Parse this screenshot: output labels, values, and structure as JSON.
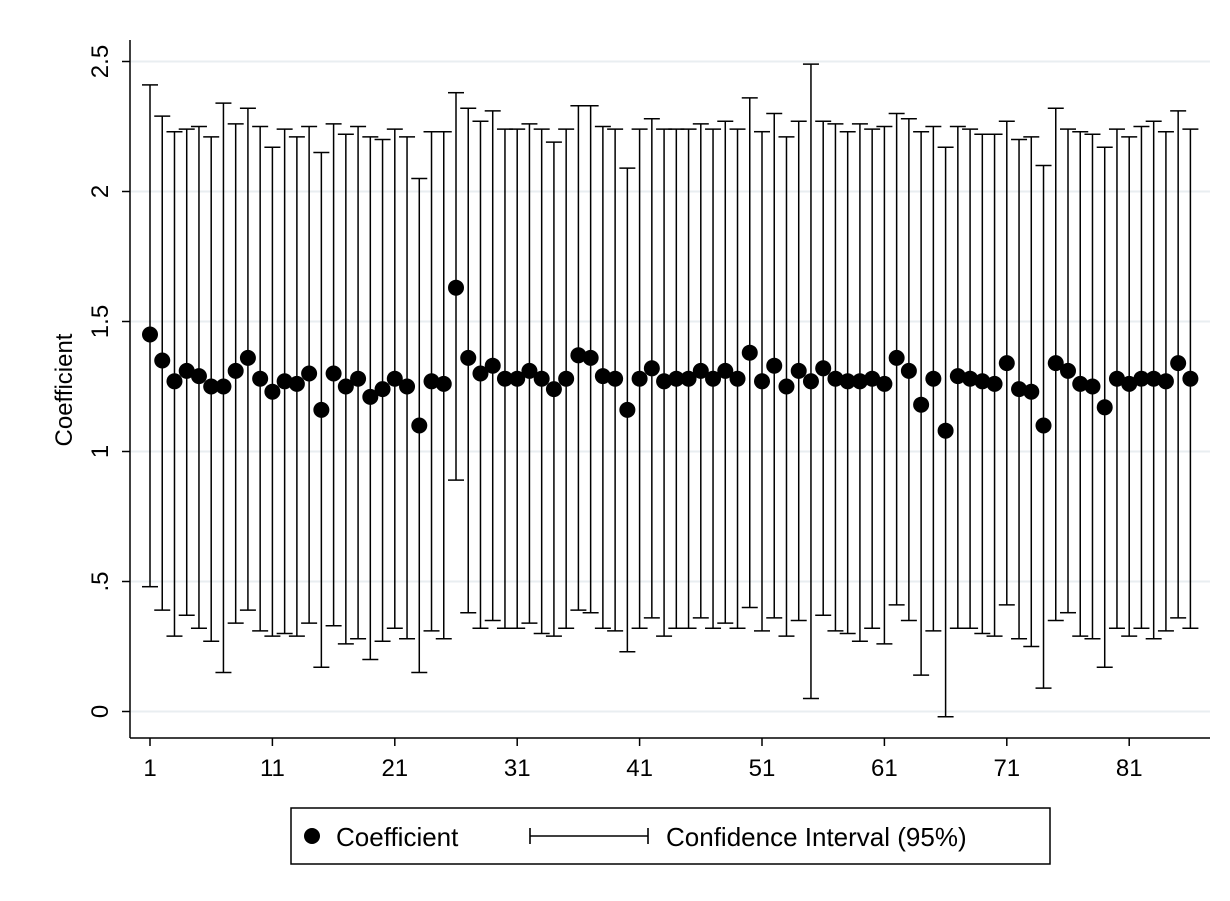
{
  "chart_data": {
    "type": "scatter",
    "ylabel": "Coefficient",
    "xlabel": "",
    "xlim": [
      0,
      87
    ],
    "ylim": [
      -0.1,
      2.6
    ],
    "x_ticks": [
      1,
      11,
      21,
      31,
      41,
      51,
      61,
      71,
      81
    ],
    "y_ticks": [
      0,
      0.5,
      1,
      1.5,
      2,
      2.5
    ],
    "y_tick_labels": [
      "0",
      ".5",
      "1",
      "1.5",
      "2",
      "2.5"
    ],
    "grid": true,
    "legend": {
      "placement": "bottom",
      "entries": [
        "Coefficient",
        "Confidence Interval (95%)"
      ]
    },
    "series": [
      {
        "name": "Coefficient",
        "x": [
          1,
          2,
          3,
          4,
          5,
          6,
          7,
          8,
          9,
          10,
          11,
          12,
          13,
          14,
          15,
          16,
          17,
          18,
          19,
          20,
          21,
          22,
          23,
          24,
          25,
          26,
          27,
          28,
          29,
          30,
          31,
          32,
          33,
          34,
          35,
          36,
          37,
          38,
          39,
          40,
          41,
          42,
          43,
          44,
          45,
          46,
          47,
          48,
          49,
          50,
          51,
          52,
          53,
          54,
          55,
          56,
          57,
          58,
          59,
          60,
          61,
          62,
          63,
          64,
          65,
          66,
          67,
          68,
          69,
          70,
          71,
          72,
          73,
          74,
          75,
          76,
          77,
          78,
          79,
          80,
          81,
          82,
          83,
          84,
          85,
          86
        ],
        "values": [
          1.45,
          1.35,
          1.27,
          1.31,
          1.29,
          1.25,
          1.25,
          1.31,
          1.36,
          1.28,
          1.23,
          1.27,
          1.26,
          1.3,
          1.16,
          1.3,
          1.25,
          1.28,
          1.21,
          1.24,
          1.28,
          1.25,
          1.1,
          1.27,
          1.26,
          1.63,
          1.36,
          1.3,
          1.33,
          1.28,
          1.28,
          1.31,
          1.28,
          1.24,
          1.28,
          1.37,
          1.36,
          1.29,
          1.28,
          1.16,
          1.28,
          1.32,
          1.27,
          1.28,
          1.28,
          1.31,
          1.28,
          1.31,
          1.28,
          1.38,
          1.27,
          1.33,
          1.25,
          1.31,
          1.27,
          1.32,
          1.28,
          1.27,
          1.27,
          1.28,
          1.26,
          1.36,
          1.31,
          1.18,
          1.28,
          1.08,
          1.29,
          1.28,
          1.27,
          1.26,
          1.34,
          1.24,
          1.23,
          1.1,
          1.34,
          1.31,
          1.26,
          1.25,
          1.17,
          1.28,
          1.26,
          1.28,
          1.28,
          1.27,
          1.34,
          1.28
        ]
      },
      {
        "name": "Confidence Interval (95%)",
        "lower": [
          0.48,
          0.39,
          0.29,
          0.37,
          0.32,
          0.27,
          0.15,
          0.34,
          0.39,
          0.31,
          0.29,
          0.3,
          0.29,
          0.34,
          0.17,
          0.33,
          0.26,
          0.28,
          0.2,
          0.27,
          0.32,
          0.28,
          0.15,
          0.31,
          0.28,
          0.89,
          0.38,
          0.32,
          0.35,
          0.32,
          0.32,
          0.34,
          0.3,
          0.29,
          0.32,
          0.39,
          0.38,
          0.32,
          0.31,
          0.23,
          0.32,
          0.36,
          0.29,
          0.32,
          0.32,
          0.36,
          0.32,
          0.34,
          0.32,
          0.4,
          0.31,
          0.36,
          0.29,
          0.35,
          0.05,
          0.37,
          0.31,
          0.3,
          0.27,
          0.32,
          0.26,
          0.41,
          0.35,
          0.14,
          0.31,
          -0.02,
          0.32,
          0.32,
          0.3,
          0.29,
          0.41,
          0.28,
          0.25,
          0.09,
          0.35,
          0.38,
          0.29,
          0.28,
          0.17,
          0.32,
          0.29,
          0.32,
          0.28,
          0.31,
          0.36,
          0.32
        ],
        "upper": [
          2.41,
          2.29,
          2.23,
          2.24,
          2.25,
          2.21,
          2.34,
          2.26,
          2.32,
          2.25,
          2.17,
          2.24,
          2.21,
          2.25,
          2.15,
          2.26,
          2.22,
          2.25,
          2.21,
          2.2,
          2.24,
          2.21,
          2.05,
          2.23,
          2.23,
          2.38,
          2.32,
          2.27,
          2.31,
          2.24,
          2.24,
          2.26,
          2.24,
          2.19,
          2.24,
          2.33,
          2.33,
          2.25,
          2.24,
          2.09,
          2.24,
          2.28,
          2.24,
          2.24,
          2.24,
          2.26,
          2.24,
          2.27,
          2.24,
          2.36,
          2.23,
          2.3,
          2.21,
          2.27,
          2.49,
          2.27,
          2.26,
          2.23,
          2.26,
          2.24,
          2.25,
          2.3,
          2.28,
          2.23,
          2.25,
          2.17,
          2.25,
          2.24,
          2.22,
          2.22,
          2.27,
          2.2,
          2.21,
          2.1,
          2.32,
          2.24,
          2.23,
          2.22,
          2.17,
          2.24,
          2.21,
          2.25,
          2.27,
          2.23,
          2.31,
          2.24
        ]
      }
    ]
  },
  "colors": {
    "background": "#ffffff",
    "grid": "#e9eef1",
    "marker": "#000000",
    "errorbar": "#000000",
    "axis": "#000000"
  }
}
